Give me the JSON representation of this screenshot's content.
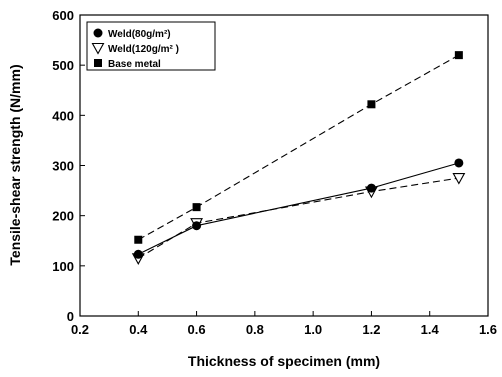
{
  "chart_data": {
    "type": "line",
    "xlabel": "Thickness of specimen (mm)",
    "ylabel": "Tensile-shear strength (N/mm)",
    "xlim": [
      0.2,
      1.6
    ],
    "ylim": [
      0,
      600
    ],
    "xticks": [
      "0.2",
      "0.4",
      "0.6",
      "0.8",
      "1.0",
      "1.2",
      "1.4",
      "1.6"
    ],
    "yticks": [
      "0",
      "100",
      "200",
      "300",
      "400",
      "500",
      "600"
    ],
    "grid": false,
    "legend_position": "top-left",
    "series": [
      {
        "name": "Weld(80g/m²)",
        "marker": "circle",
        "line": "solid",
        "x": [
          0.4,
          0.6,
          1.2,
          1.5
        ],
        "y": [
          123,
          180,
          255,
          305
        ]
      },
      {
        "name": "Weld(120g/m² )",
        "marker": "triangle-down",
        "line": "dashed",
        "x": [
          0.4,
          0.6,
          1.2,
          1.5
        ],
        "y": [
          115,
          185,
          248,
          275
        ]
      },
      {
        "name": "Base metal",
        "marker": "square",
        "line": "dashed",
        "x": [
          0.4,
          0.6,
          1.2,
          1.5
        ],
        "y": [
          152,
          217,
          422,
          520
        ]
      }
    ]
  }
}
